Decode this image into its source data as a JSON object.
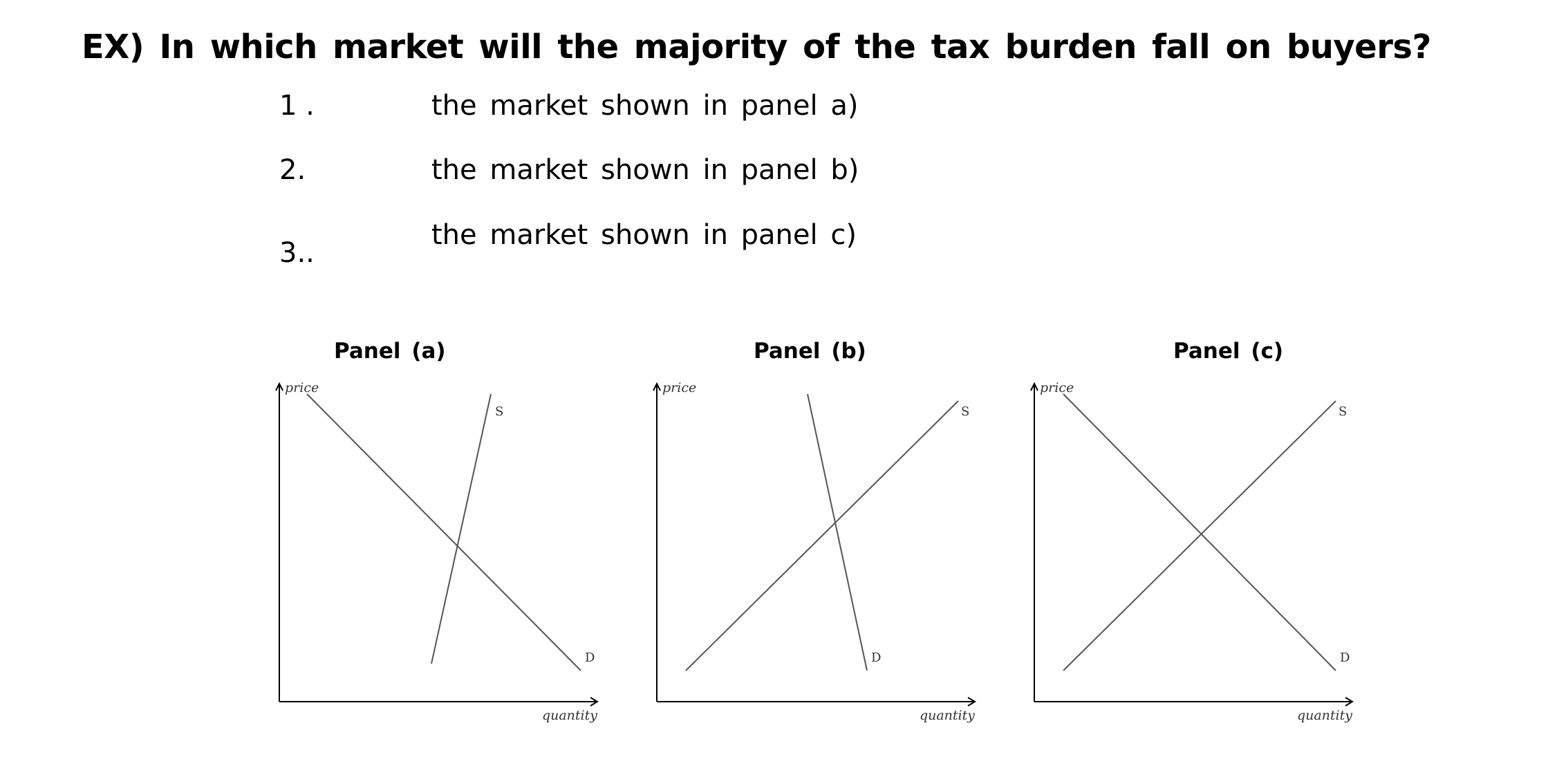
{
  "question": "EX) In which market will the majority of the tax burden fall on buyers?",
  "choices": [
    {
      "number": "1 .",
      "text": "the market shown in panel a)"
    },
    {
      "number": "2.",
      "text": "the market shown in panel b)"
    },
    {
      "number": "3..",
      "text": "the market shown in panel c)"
    }
  ],
  "panels": [
    {
      "title": "Panel (a)",
      "y_axis_label": "price",
      "x_axis_label": "quantity",
      "supply_label": "S",
      "demand_label": "D"
    },
    {
      "title": "Panel (b)",
      "y_axis_label": "price",
      "x_axis_label": "quantity",
      "supply_label": "S",
      "demand_label": "D"
    },
    {
      "title": "Panel (c)",
      "y_axis_label": "price",
      "x_axis_label": "quantity",
      "supply_label": "S",
      "demand_label": "D"
    }
  ],
  "colors": {
    "axis": "#000000",
    "curve": "#555555"
  }
}
